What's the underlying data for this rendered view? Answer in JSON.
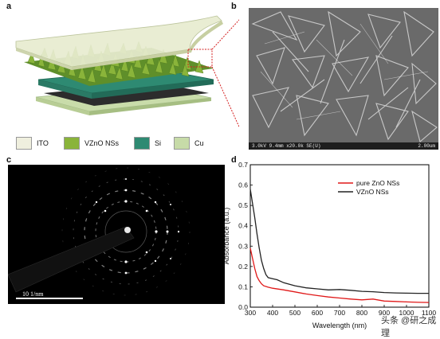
{
  "panels": {
    "a": "a",
    "b": "b",
    "c": "c",
    "d": "d"
  },
  "legend": [
    {
      "label": "ITO",
      "color": "#efefde"
    },
    {
      "label": "VZnO NSs",
      "color": "#8ab43a"
    },
    {
      "label": "Si",
      "color": "#2e8a72"
    },
    {
      "label": "Cu",
      "color": "#c7dba8"
    }
  ],
  "sem": {
    "info": "3.0kV 9.4mm x20.0k SE(U)",
    "scale": "2.00um"
  },
  "saed": {
    "scale_label": "10 1/nm"
  },
  "chart_data": {
    "type": "line",
    "xlabel": "Wavelength (nm)",
    "ylabel": "Absorbance (a.u.)",
    "xlim": [
      300,
      1100
    ],
    "ylim": [
      0.0,
      0.7
    ],
    "xticks": [
      300,
      400,
      500,
      600,
      700,
      800,
      900,
      1000,
      1100
    ],
    "yticks": [
      0.0,
      0.1,
      0.2,
      0.3,
      0.4,
      0.5,
      0.6,
      0.7
    ],
    "legend_position": "top-right",
    "series": [
      {
        "name": "pure ZnO NSs",
        "color": "#e01818",
        "x": [
          300,
          310,
          320,
          330,
          340,
          350,
          360,
          380,
          400,
          450,
          500,
          550,
          600,
          650,
          700,
          750,
          800,
          850,
          900,
          950,
          1000,
          1050,
          1100
        ],
        "y": [
          0.29,
          0.24,
          0.19,
          0.15,
          0.13,
          0.115,
          0.105,
          0.098,
          0.093,
          0.085,
          0.075,
          0.065,
          0.057,
          0.05,
          0.045,
          0.04,
          0.036,
          0.04,
          0.03,
          0.028,
          0.026,
          0.024,
          0.023
        ]
      },
      {
        "name": "VZnO NSs",
        "color": "#222222",
        "x": [
          300,
          310,
          320,
          330,
          340,
          350,
          360,
          370,
          380,
          400,
          420,
          450,
          500,
          550,
          600,
          650,
          700,
          750,
          800,
          850,
          900,
          950,
          1000,
          1050,
          1100
        ],
        "y": [
          0.58,
          0.51,
          0.44,
          0.36,
          0.29,
          0.23,
          0.19,
          0.16,
          0.145,
          0.14,
          0.135,
          0.12,
          0.105,
          0.095,
          0.09,
          0.085,
          0.087,
          0.083,
          0.078,
          0.076,
          0.072,
          0.07,
          0.069,
          0.068,
          0.068
        ]
      }
    ]
  },
  "watermark": "头条 @研之成理"
}
